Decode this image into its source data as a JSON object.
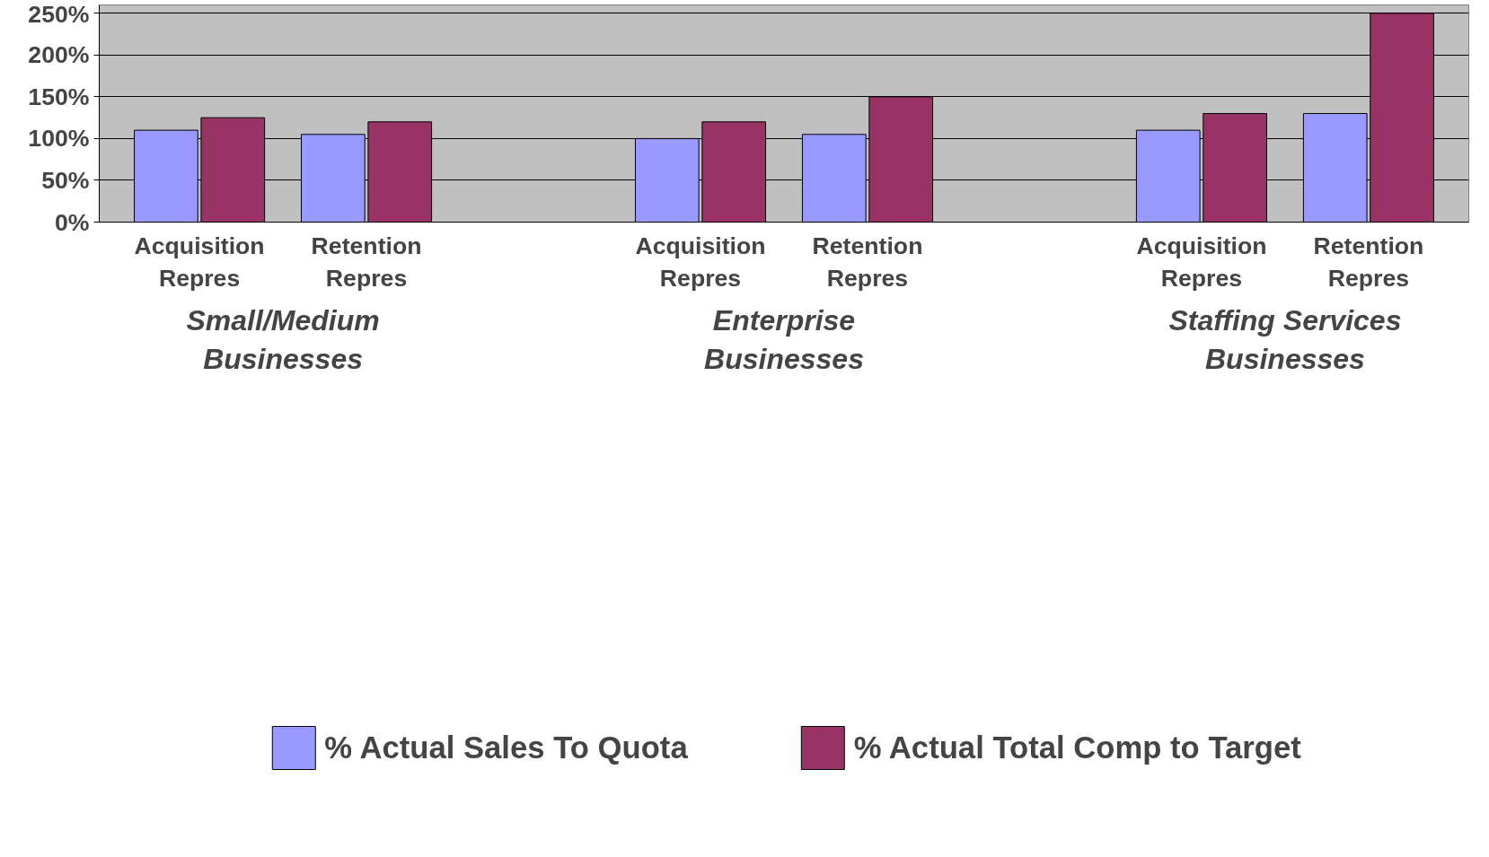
{
  "chart_data": {
    "type": "bar",
    "categories": [
      "Acquisition Repres",
      "Retention Repres",
      null,
      "Acquisition Repres",
      "Retention Repres",
      null,
      "Acquisition Repres",
      "Retention Repres"
    ],
    "series": [
      {
        "name": "% Actual Sales To Quota",
        "color": "#9999ff",
        "values": [
          110,
          105,
          null,
          100,
          105,
          null,
          110,
          130
        ]
      },
      {
        "name": "% Actual Total Comp to Target",
        "color": "#993366",
        "values": [
          125,
          120,
          null,
          120,
          150,
          null,
          130,
          250
        ]
      }
    ],
    "annotations": [
      "Small/Medium Businesses",
      "Enterprise Businesses",
      "Staffing Services Businesses"
    ],
    "ylim": [
      0,
      260
    ],
    "yticks": [
      {
        "value": 0,
        "label": "0%"
      },
      {
        "value": 50,
        "label": "50%"
      },
      {
        "value": 100,
        "label": "100%"
      },
      {
        "value": 150,
        "label": "150%"
      },
      {
        "value": 200,
        "label": "200%"
      },
      {
        "value": 250,
        "label": "250%"
      }
    ],
    "grid": "y",
    "legend": "bottom"
  }
}
